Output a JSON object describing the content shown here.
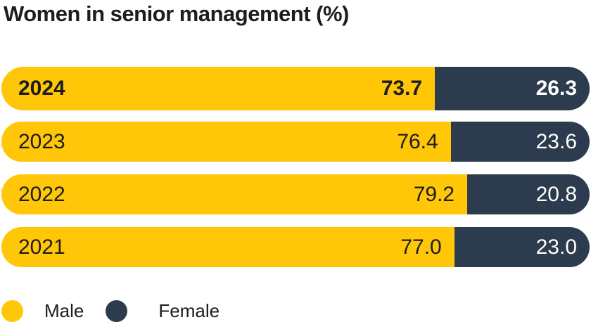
{
  "title": "Women in senior management (%)",
  "colors": {
    "male": "#FFC708",
    "female": "#2C3B4D",
    "title_text": "#1D1D1B",
    "female_value_text": "#FFFFFF",
    "background": "#FFFFFF"
  },
  "chart_data": {
    "type": "bar",
    "subtype": "stacked-horizontal-100percent",
    "title": "Women in senior management (%)",
    "categories": [
      "2024",
      "2023",
      "2022",
      "2021"
    ],
    "series": [
      {
        "name": "Male",
        "color": "#FFC708",
        "values": [
          73.7,
          76.4,
          79.2,
          77.0
        ]
      },
      {
        "name": "Female",
        "color": "#2C3B4D",
        "values": [
          26.3,
          23.6,
          20.8,
          23.0
        ]
      }
    ],
    "xlim": [
      0,
      100
    ],
    "value_labels": "inside-end",
    "grid": false,
    "legend_position": "bottom-left",
    "highlighted_category": "2024"
  },
  "rows": [
    {
      "year": "2024",
      "male_pct": 73.7,
      "female_pct": 26.3,
      "male_value": "73.7",
      "female_value": "26.3",
      "highlight": true
    },
    {
      "year": "2023",
      "male_pct": 76.4,
      "female_pct": 23.6,
      "male_value": "76.4",
      "female_value": "23.6",
      "highlight": false
    },
    {
      "year": "2022",
      "male_pct": 79.2,
      "female_pct": 20.8,
      "male_value": "79.2",
      "female_value": "20.8",
      "highlight": false
    },
    {
      "year": "2021",
      "male_pct": 77.0,
      "female_pct": 23.0,
      "male_value": "77.0",
      "female_value": "23.0",
      "highlight": false
    }
  ],
  "legend": {
    "items": [
      {
        "label": "Male"
      },
      {
        "label": "Female"
      }
    ]
  }
}
